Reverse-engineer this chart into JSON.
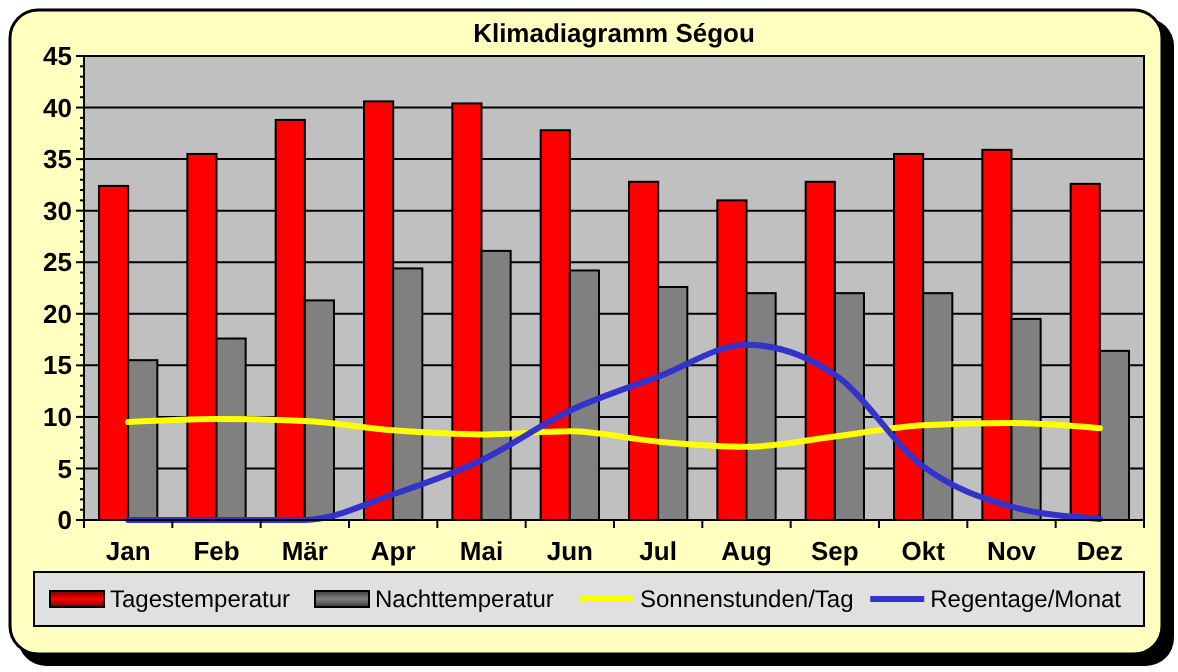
{
  "chart_data": {
    "type": "bar",
    "title": "Klimadiagramm Ségou",
    "categories": [
      "Jan",
      "Feb",
      "Mär",
      "Apr",
      "Mai",
      "Jun",
      "Jul",
      "Aug",
      "Sep",
      "Okt",
      "Nov",
      "Dez"
    ],
    "series": [
      {
        "name": "Tagestemperatur",
        "color": "#ff0000",
        "values": [
          32.4,
          35.5,
          38.8,
          40.6,
          40.4,
          37.8,
          32.8,
          31.0,
          32.8,
          35.5,
          35.9,
          32.6
        ]
      },
      {
        "name": "Nachttemperatur",
        "color": "#808080",
        "values": [
          15.5,
          17.6,
          21.3,
          24.4,
          26.1,
          24.2,
          22.6,
          22.0,
          22.0,
          22.0,
          19.5,
          16.4
        ]
      },
      {
        "name": "Sonnenstunden/Tag",
        "type": "line",
        "color": "#ffff00",
        "values": [
          9.5,
          9.8,
          9.6,
          8.7,
          8.3,
          8.6,
          7.6,
          7.1,
          8.1,
          9.2,
          9.4,
          8.9
        ]
      },
      {
        "name": "Regentage/Monat",
        "type": "line",
        "color": "#3333cc",
        "values": [
          0,
          0,
          0,
          2.5,
          5.8,
          10.6,
          13.9,
          17.0,
          14.1,
          5.2,
          1.3,
          0.1
        ]
      }
    ],
    "ylim": [
      0,
      45
    ],
    "yticks": [
      0,
      5,
      10,
      15,
      20,
      25,
      30,
      35,
      40,
      45
    ],
    "grid": "y",
    "legend": "bottom"
  }
}
